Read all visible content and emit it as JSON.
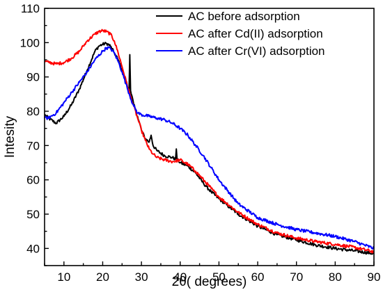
{
  "chart_data": {
    "type": "line",
    "title": "",
    "xlabel": "2θ( degrees)",
    "ylabel": "Intesity",
    "xlim": [
      5,
      90
    ],
    "ylim": [
      35,
      110
    ],
    "xticks": [
      10,
      20,
      30,
      40,
      50,
      60,
      70,
      80,
      90
    ],
    "yticks": [
      40,
      50,
      60,
      70,
      80,
      90,
      100,
      110
    ],
    "grid": false,
    "legend_position": "top-right",
    "series": [
      {
        "name": "AC before adsorption",
        "color": "#000000",
        "x": [
          5,
          6,
          8,
          10,
          12,
          14,
          16,
          18,
          19,
          20,
          21,
          22,
          23,
          24,
          25,
          26,
          26.8,
          27,
          27.2,
          28,
          29,
          30,
          31,
          32,
          32.5,
          33,
          34,
          36,
          38,
          38.8,
          39,
          39.2,
          40,
          42,
          44,
          46,
          48,
          50,
          55,
          60,
          65,
          70,
          75,
          80,
          85,
          90
        ],
        "y": [
          79,
          78,
          76.5,
          78.5,
          82,
          86.5,
          92,
          97.5,
          99,
          99.5,
          99.8,
          99,
          97,
          95,
          92,
          88,
          86,
          96.5,
          86,
          82,
          78.5,
          74.5,
          72,
          71,
          73,
          70,
          68.5,
          67,
          66.5,
          66,
          69,
          66,
          65,
          64,
          62,
          59,
          56.5,
          54.5,
          50,
          46.5,
          44,
          42.5,
          41,
          40,
          39.3,
          38.5
        ]
      },
      {
        "name": "AC after Cd(II) adsorption",
        "color": "#ff0000",
        "x": [
          5,
          6,
          8,
          10,
          12,
          14,
          15,
          16,
          18,
          19,
          20,
          21,
          22,
          23,
          24,
          25,
          26,
          27,
          28,
          29,
          30,
          31,
          32,
          33,
          34,
          36,
          38,
          40,
          42,
          44,
          46,
          48,
          50,
          55,
          60,
          65,
          70,
          75,
          80,
          85,
          90
        ],
        "y": [
          94.5,
          94.3,
          93.8,
          94.2,
          95.5,
          97.5,
          99,
          100.5,
          102.5,
          103.2,
          103.5,
          103.2,
          102.5,
          100.5,
          97,
          93,
          89,
          85,
          81.5,
          78,
          74.5,
          71.5,
          69,
          67.5,
          66.5,
          65.8,
          65.3,
          65.8,
          64.5,
          62.5,
          60,
          57.5,
          55,
          50.5,
          47,
          44.5,
          43,
          42,
          41.2,
          40.3,
          39
        ]
      },
      {
        "name": "AC after Cr(VI) adsorption",
        "color": "#0000ff",
        "x": [
          5,
          6,
          8,
          10,
          12,
          14,
          16,
          18,
          20,
          21,
          22,
          23,
          24,
          25,
          26,
          27,
          28,
          29,
          30,
          32,
          34,
          36,
          38,
          40,
          42,
          44,
          46,
          48,
          50,
          55,
          60,
          65,
          70,
          75,
          80,
          85,
          90
        ],
        "y": [
          78,
          78,
          79.5,
          82.5,
          85.5,
          88.5,
          91.5,
          95,
          97.5,
          98.5,
          98.3,
          97,
          94.5,
          91.5,
          88,
          84.5,
          81.5,
          79.5,
          79,
          78.5,
          78,
          77.5,
          76.5,
          75,
          73,
          70,
          67,
          63.5,
          60,
          53,
          49,
          47,
          45.5,
          44.5,
          43.5,
          42,
          40
        ]
      }
    ]
  }
}
